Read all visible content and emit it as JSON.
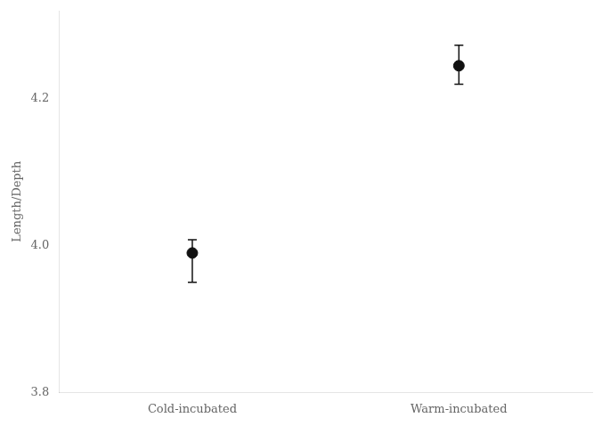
{
  "chart_data": {
    "type": "scatter",
    "categories": [
      "Cold-incubated",
      "Warm-incubated"
    ],
    "values": [
      3.99,
      4.245
    ],
    "yerr_lower": [
      0.04,
      0.025
    ],
    "yerr_upper": [
      0.018,
      0.028
    ],
    "ylabel": "Length/Depth",
    "ylim": [
      3.8,
      4.32
    ],
    "yticks": [
      3.8,
      {
        "value": 4.0,
        "label": "4.0"
      },
      4.2
    ],
    "color": "#111111",
    "grid": false
  }
}
